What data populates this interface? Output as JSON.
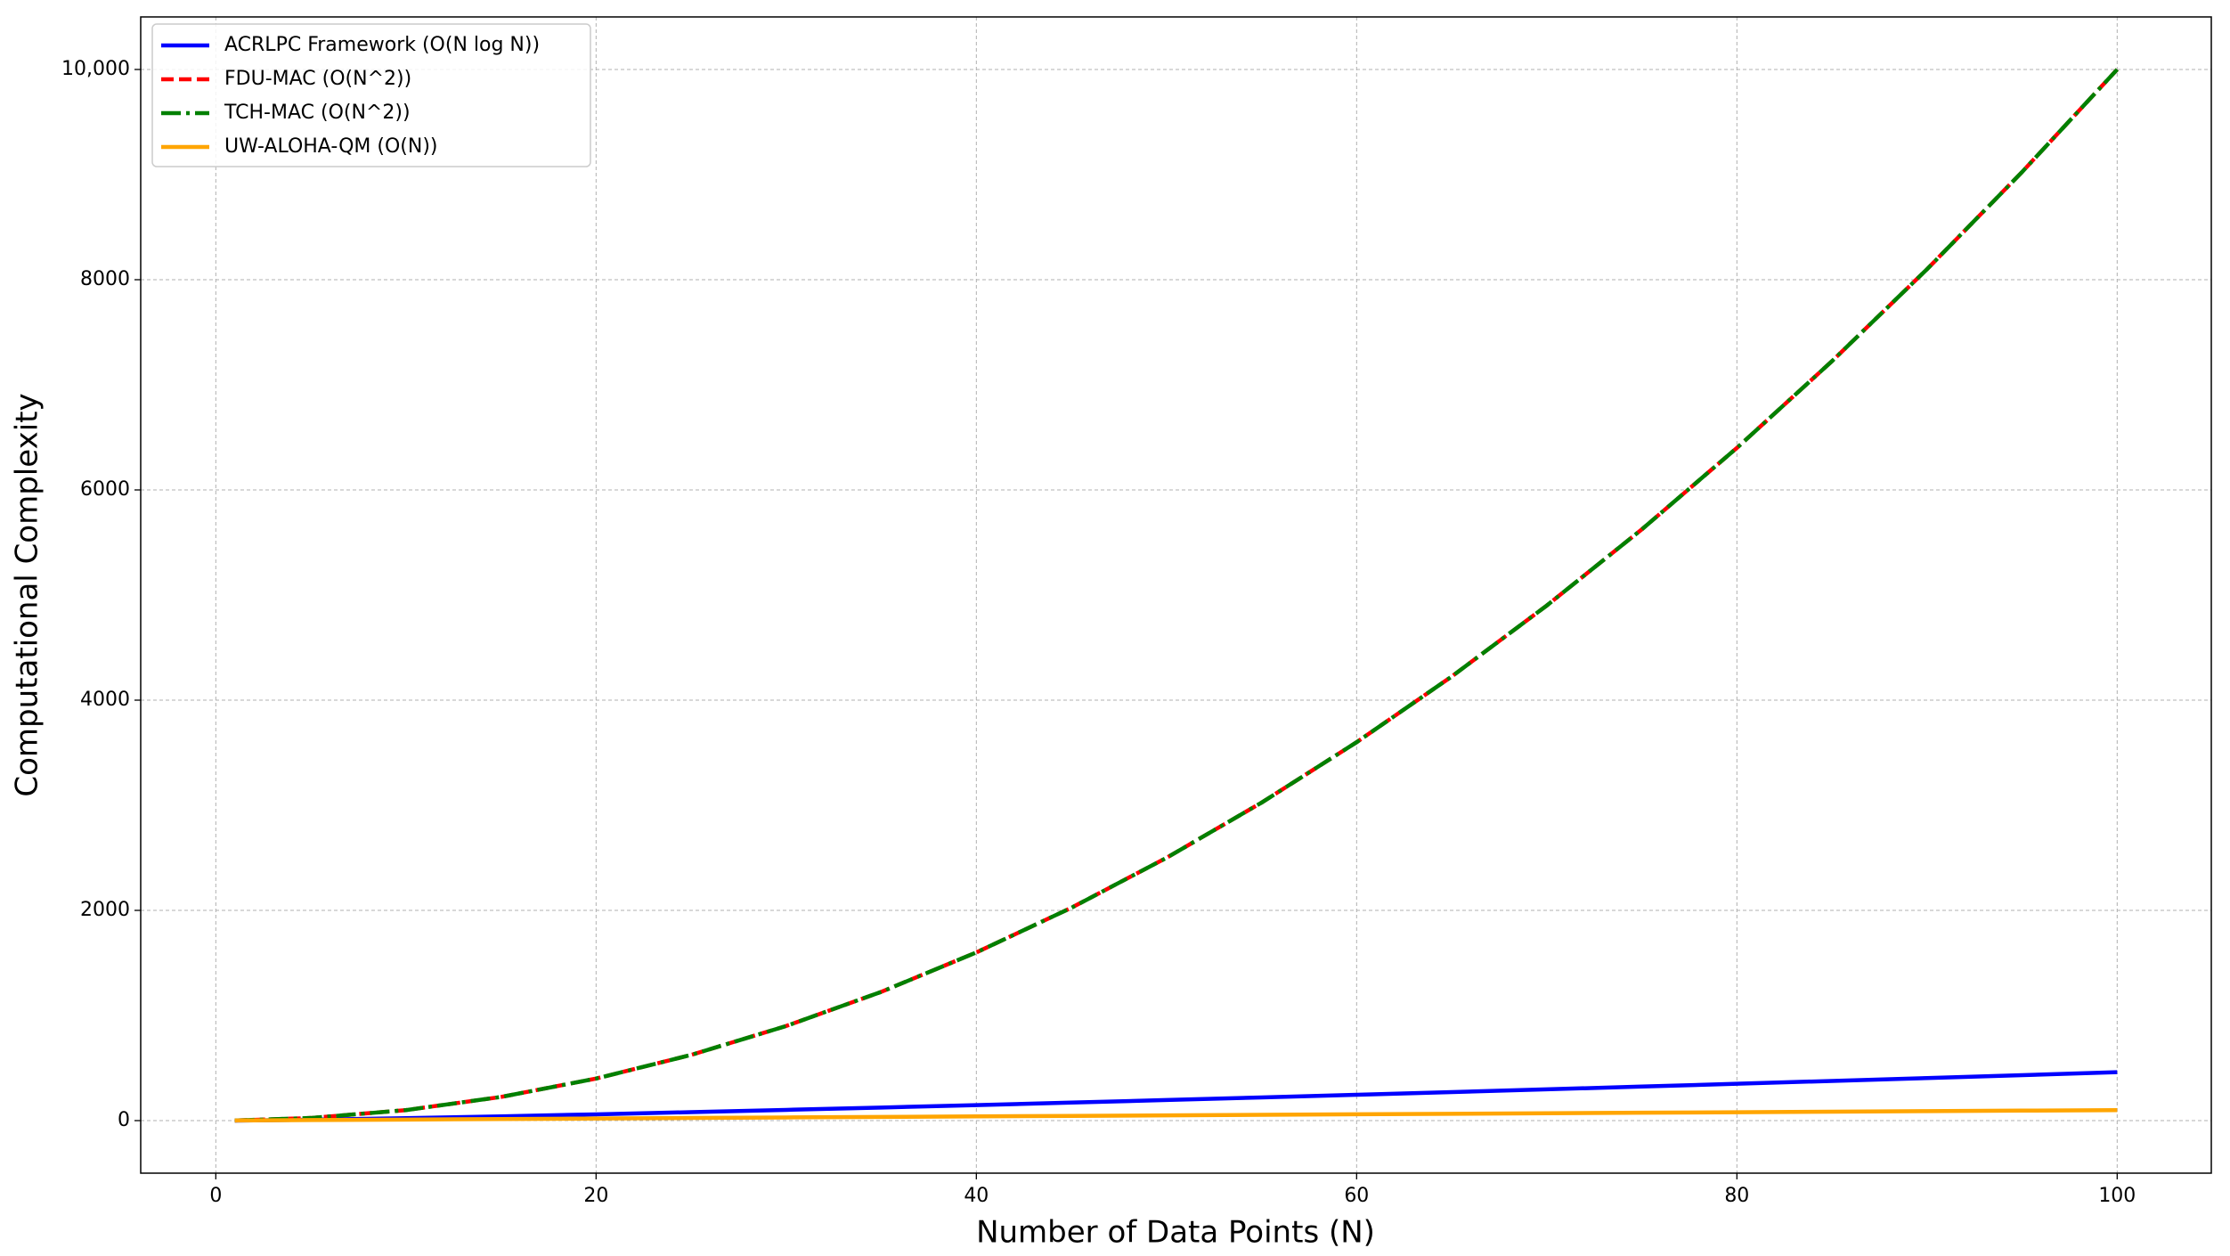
{
  "chart_data": {
    "type": "line",
    "xlabel": "Number of Data Points (N)",
    "ylabel": "Computational Complexity",
    "x": [
      1,
      5,
      10,
      15,
      20,
      25,
      30,
      35,
      40,
      45,
      50,
      55,
      60,
      65,
      70,
      75,
      80,
      85,
      90,
      95,
      100
    ],
    "series": [
      {
        "name": "ACRLPC Framework (O(N log N))",
        "color": "#0000ff",
        "linestyle": "-",
        "values": [
          0,
          8.05,
          23.03,
          40.62,
          59.91,
          80.47,
          102.04,
          124.44,
          147.56,
          171.3,
          195.6,
          220.4,
          245.66,
          271.33,
          297.4,
          323.81,
          350.56,
          377.63,
          404.98,
          432.62,
          460.52
        ]
      },
      {
        "name": "FDU-MAC (O(N^2))",
        "color": "#ff0000",
        "linestyle": "--",
        "values": [
          1,
          25,
          100,
          225,
          400,
          625,
          900,
          1225,
          1600,
          2025,
          2500,
          3025,
          3600,
          4225,
          4900,
          5625,
          6400,
          7225,
          8100,
          9025,
          10000
        ]
      },
      {
        "name": "TCH-MAC (O(N^2))",
        "color": "#008000",
        "linestyle": "-.",
        "values": [
          1,
          25,
          100,
          225,
          400,
          625,
          900,
          1225,
          1600,
          2025,
          2500,
          3025,
          3600,
          4225,
          4900,
          5625,
          6400,
          7225,
          8100,
          9025,
          10000
        ]
      },
      {
        "name": "UW-ALOHA-QM (O(N))",
        "color": "#ffa500",
        "linestyle": "-",
        "values": [
          1,
          5,
          10,
          15,
          20,
          25,
          30,
          35,
          40,
          45,
          50,
          55,
          60,
          65,
          70,
          75,
          80,
          85,
          90,
          95,
          100
        ]
      }
    ],
    "xlim": [
      -3.95,
      104.95
    ],
    "xticks": [
      0,
      20,
      40,
      60,
      80,
      100
    ],
    "ylim": [
      -499.95,
      10499.95
    ],
    "yticks": [
      0,
      2000,
      4000,
      6000,
      8000,
      {
        "value": 10000,
        "label": "10,000"
      }
    ],
    "grid": true,
    "legend": "upper left"
  }
}
